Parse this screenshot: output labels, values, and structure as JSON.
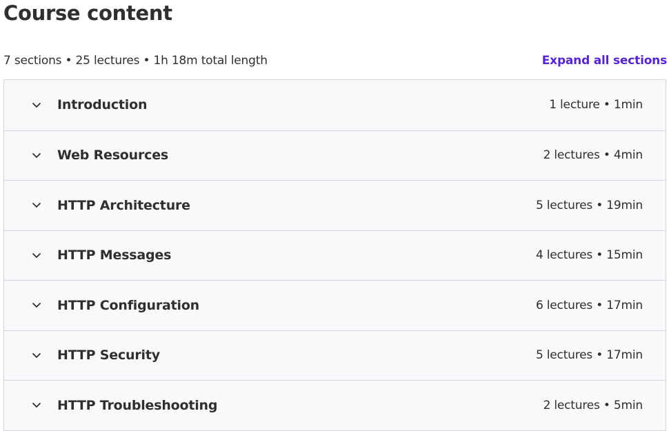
{
  "header": {
    "title": "Course content"
  },
  "summary": {
    "text": "7 sections • 25 lectures • 1h 18m total length",
    "expand_label": "Expand all sections"
  },
  "colors": {
    "accent": "#5624d0",
    "text": "#2d2f31",
    "section_bg": "#f7f9fa",
    "border": "#d1d7dc"
  },
  "sections": [
    {
      "title": "Introduction",
      "meta": "1 lecture • 1min",
      "icon": "chevron-down-icon"
    },
    {
      "title": "Web Resources",
      "meta": "2 lectures • 4min",
      "icon": "chevron-down-icon"
    },
    {
      "title": "HTTP Architecture",
      "meta": "5 lectures • 19min",
      "icon": "chevron-down-icon"
    },
    {
      "title": "HTTP Messages",
      "meta": "4 lectures • 15min",
      "icon": "chevron-down-icon"
    },
    {
      "title": "HTTP Configuration",
      "meta": "6 lectures • 17min",
      "icon": "chevron-down-icon"
    },
    {
      "title": "HTTP Security",
      "meta": "5 lectures • 17min",
      "icon": "chevron-down-icon"
    },
    {
      "title": "HTTP Troubleshooting",
      "meta": "2 lectures • 5min",
      "icon": "chevron-down-icon"
    }
  ]
}
